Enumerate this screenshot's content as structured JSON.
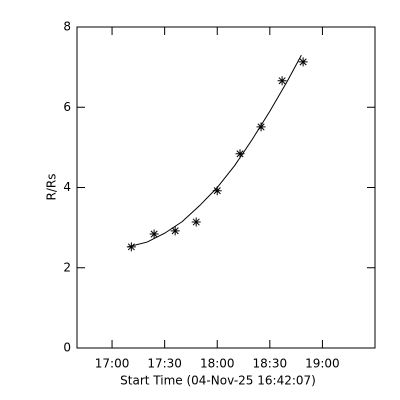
{
  "chart_data": {
    "type": "scatter",
    "xlabel": "Start Time (04-Nov-25 16:42:07)",
    "ylabel": "R/Rs",
    "xlim": [
      "16:40",
      "19:30"
    ],
    "xticks": [
      "17:00",
      "17:30",
      "18:00",
      "18:30",
      "19:00"
    ],
    "ylim": [
      0,
      8
    ],
    "yticks": [
      0,
      2,
      4,
      6,
      8
    ],
    "color": "#000000",
    "series": [
      {
        "marker": "asterisk",
        "x": [
          "17:11",
          "17:24",
          "17:36",
          "17:48",
          "18:00",
          "18:13",
          "18:25",
          "18:37",
          "18:49"
        ],
        "values": [
          2.52,
          2.84,
          2.92,
          3.14,
          3.92,
          4.84,
          5.51,
          6.66,
          7.13
        ]
      },
      {
        "marker": "line",
        "x": [
          "17:09",
          "17:20",
          "17:30",
          "17:40",
          "17:50",
          "18:00",
          "18:10",
          "18:20",
          "18:30",
          "18:40",
          "18:48"
        ],
        "values": [
          2.52,
          2.64,
          2.86,
          3.15,
          3.55,
          4.0,
          4.55,
          5.2,
          5.9,
          6.65,
          7.3
        ]
      }
    ]
  }
}
